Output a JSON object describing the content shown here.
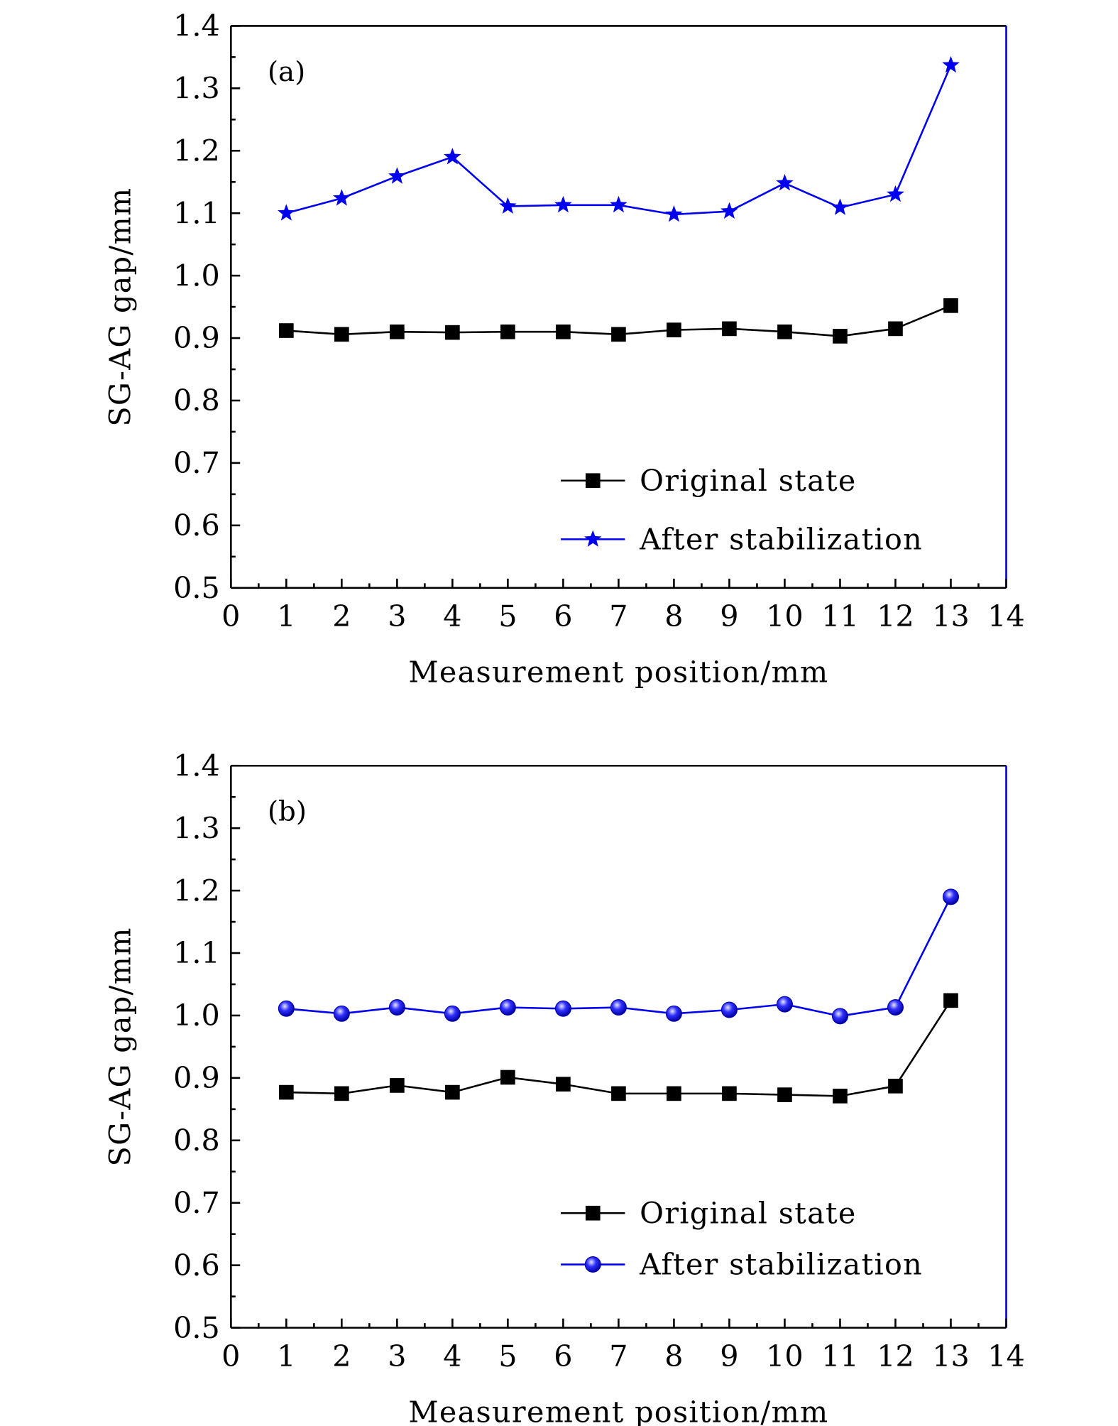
{
  "chart_data": [
    {
      "type": "line",
      "panel_label": "(a)",
      "xlabel": "Measurement position/mm",
      "ylabel": "SG-AG gap/mm",
      "xlim": [
        0,
        14
      ],
      "ylim": [
        0.5,
        1.4
      ],
      "xticks": [
        "0",
        "1",
        "2",
        "3",
        "4",
        "5",
        "6",
        "7",
        "8",
        "9",
        "10",
        "11",
        "12",
        "13",
        "14"
      ],
      "yticks": [
        "0.5",
        "0.6",
        "0.7",
        "0.8",
        "0.9",
        "1.0",
        "1.1",
        "1.2",
        "1.3",
        "1.4"
      ],
      "legend_position": "bottom-right",
      "x": [
        1,
        2,
        3,
        4,
        5,
        6,
        7,
        8,
        9,
        10,
        11,
        12,
        13
      ],
      "series": [
        {
          "name": "Original state",
          "marker": "square",
          "color": "#000000",
          "values": [
            0.912,
            0.906,
            0.91,
            0.909,
            0.91,
            0.91,
            0.906,
            0.913,
            0.915,
            0.91,
            0.903,
            0.915,
            0.952
          ]
        },
        {
          "name": "After stabilization",
          "marker": "star",
          "color": "#0000ee",
          "values": [
            1.1,
            1.124,
            1.159,
            1.19,
            1.111,
            1.113,
            1.113,
            1.098,
            1.103,
            1.148,
            1.109,
            1.13,
            1.337
          ]
        }
      ]
    },
    {
      "type": "line",
      "panel_label": "(b)",
      "xlabel": "Measurement position/mm",
      "ylabel": "SG-AG gap/mm",
      "xlim": [
        0,
        14
      ],
      "ylim": [
        0.5,
        1.4
      ],
      "xticks": [
        "0",
        "1",
        "2",
        "3",
        "4",
        "5",
        "6",
        "7",
        "8",
        "9",
        "10",
        "11",
        "12",
        "13",
        "14"
      ],
      "yticks": [
        "0.5",
        "0.6",
        "0.7",
        "0.8",
        "0.9",
        "1.0",
        "1.1",
        "1.2",
        "1.3",
        "1.4"
      ],
      "legend_position": "bottom-right",
      "x": [
        1,
        2,
        3,
        4,
        5,
        6,
        7,
        8,
        9,
        10,
        11,
        12,
        13
      ],
      "series": [
        {
          "name": "Original state",
          "marker": "square",
          "color": "#000000",
          "values": [
            0.877,
            0.875,
            0.888,
            0.877,
            0.901,
            0.89,
            0.875,
            0.875,
            0.875,
            0.873,
            0.871,
            0.887,
            1.024
          ]
        },
        {
          "name": "After stabilization",
          "marker": "circle",
          "color": "#0000ee",
          "values": [
            1.011,
            1.003,
            1.013,
            1.003,
            1.013,
            1.011,
            1.013,
            1.003,
            1.009,
            1.018,
            0.999,
            1.013,
            1.19
          ]
        }
      ]
    }
  ]
}
